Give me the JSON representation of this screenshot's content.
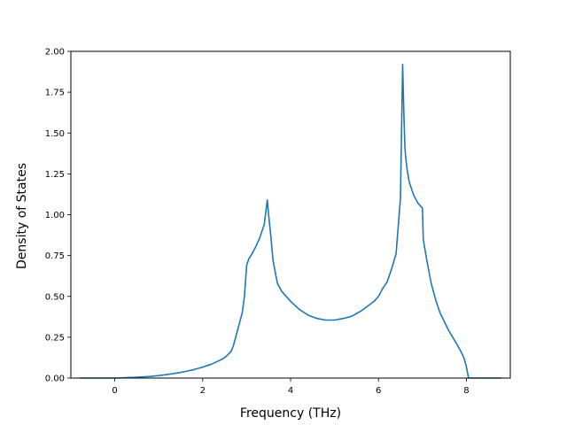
{
  "chart_data": {
    "type": "line",
    "title": "",
    "xlabel": "Frequency (THz)",
    "ylabel": "Density of States",
    "xlim": [
      -1.0,
      9.0
    ],
    "ylim": [
      0.0,
      2.0
    ],
    "xticks": [
      0,
      2,
      4,
      6,
      8
    ],
    "xtick_labels": [
      "0",
      "2",
      "4",
      "6",
      "8"
    ],
    "yticks": [
      0.0,
      0.25,
      0.5,
      0.75,
      1.0,
      1.25,
      1.5,
      1.75,
      2.0
    ],
    "ytick_labels": [
      "0.00",
      "0.25",
      "0.50",
      "0.75",
      "1.00",
      "1.25",
      "1.50",
      "1.75",
      "2.00"
    ],
    "grid": false,
    "series": [
      {
        "color": "#1f77b4",
        "x": [
          -0.8,
          -0.4,
          0.0,
          0.2,
          0.5,
          0.8,
          1.0,
          1.2,
          1.4,
          1.6,
          1.8,
          2.0,
          2.2,
          2.4,
          2.5,
          2.6,
          2.65,
          2.7,
          2.8,
          2.9,
          2.95,
          3.0,
          3.05,
          3.1,
          3.2,
          3.3,
          3.4,
          3.47,
          3.5,
          3.55,
          3.6,
          3.7,
          3.8,
          4.0,
          4.2,
          4.4,
          4.6,
          4.8,
          5.0,
          5.2,
          5.35,
          5.4,
          5.5,
          5.6,
          5.7,
          5.8,
          5.9,
          6.0,
          6.1,
          6.2,
          6.3,
          6.4,
          6.5,
          6.55,
          6.58,
          6.6,
          6.62,
          6.65,
          6.7,
          6.8,
          6.9,
          7.0,
          7.02,
          7.05,
          7.1,
          7.2,
          7.3,
          7.4,
          7.6,
          7.8,
          7.9,
          7.95,
          8.0,
          8.05,
          8.2,
          8.4,
          8.8
        ],
        "y": [
          0.0,
          0.0,
          0.0,
          0.002,
          0.005,
          0.01,
          0.015,
          0.022,
          0.03,
          0.04,
          0.052,
          0.067,
          0.085,
          0.11,
          0.125,
          0.15,
          0.165,
          0.2,
          0.3,
          0.4,
          0.5,
          0.69,
          0.73,
          0.75,
          0.8,
          0.86,
          0.94,
          1.09,
          1.0,
          0.87,
          0.72,
          0.58,
          0.53,
          0.47,
          0.42,
          0.385,
          0.365,
          0.355,
          0.355,
          0.365,
          0.375,
          0.38,
          0.395,
          0.41,
          0.43,
          0.45,
          0.47,
          0.5,
          0.55,
          0.59,
          0.67,
          0.76,
          1.1,
          1.92,
          1.6,
          1.42,
          1.35,
          1.28,
          1.2,
          1.12,
          1.07,
          1.04,
          0.85,
          0.8,
          0.72,
          0.58,
          0.48,
          0.4,
          0.29,
          0.2,
          0.15,
          0.12,
          0.07,
          0.0,
          0.0,
          0.0,
          0.0
        ]
      }
    ]
  }
}
